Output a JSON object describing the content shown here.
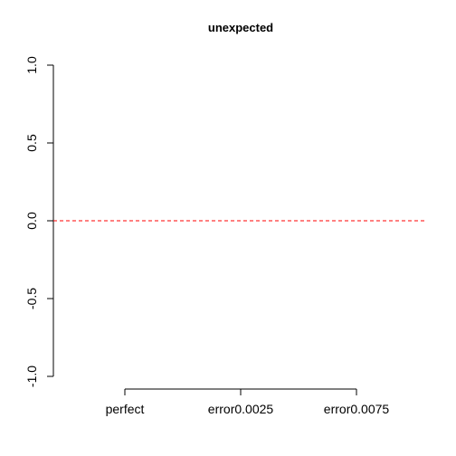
{
  "chart_data": {
    "type": "line",
    "title": "unexpected",
    "xlabel": "",
    "ylabel": "",
    "categories": [
      "perfect",
      "error0.0025",
      "error0.0075"
    ],
    "x_tick_labels": [
      "perfect",
      "error0.0025",
      "error0.0075"
    ],
    "ylim": [
      -1.0,
      1.0
    ],
    "y_ticks": [
      -1.0,
      -0.5,
      0.0,
      0.5,
      1.0
    ],
    "y_tick_labels": [
      "-1.0",
      "-0.5",
      "0.0",
      "0.5",
      "1.0"
    ],
    "series": [],
    "reference_line": {
      "y": 0.0,
      "style": "dashed",
      "color": "#ff0000"
    },
    "grid": false,
    "legend": "none"
  }
}
